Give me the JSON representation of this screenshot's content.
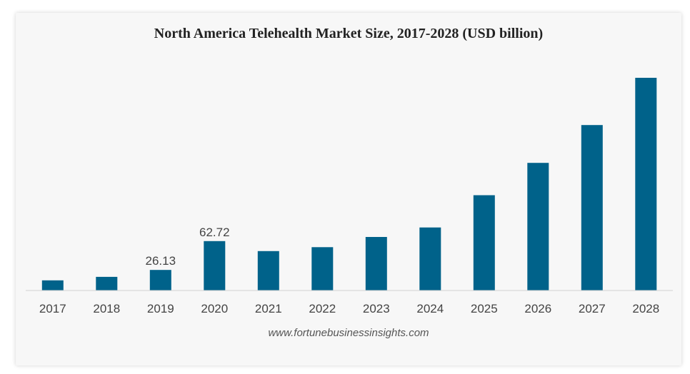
{
  "chart_data": {
    "type": "bar",
    "title": "North America Telehealth Market Size, 2017-2028 (USD billion)",
    "xlabel": "",
    "ylabel": "",
    "categories": [
      "2017",
      "2018",
      "2019",
      "2020",
      "2021",
      "2022",
      "2023",
      "2024",
      "2025",
      "2026",
      "2027",
      "2028"
    ],
    "values": [
      12.9,
      17.3,
      26.13,
      62.72,
      50.0,
      55.0,
      68.0,
      80.0,
      121.0,
      162.0,
      210.0,
      270.0
    ],
    "data_labels": [
      "",
      "",
      "26.13",
      "62.72",
      "",
      "",
      "",
      "",
      "",
      "",
      "",
      ""
    ],
    "ylim": [
      0,
      280
    ],
    "grid": false,
    "legend": "none",
    "bar_color": "#00628a"
  },
  "source_text": "www.fortunebusinessinsights.com"
}
